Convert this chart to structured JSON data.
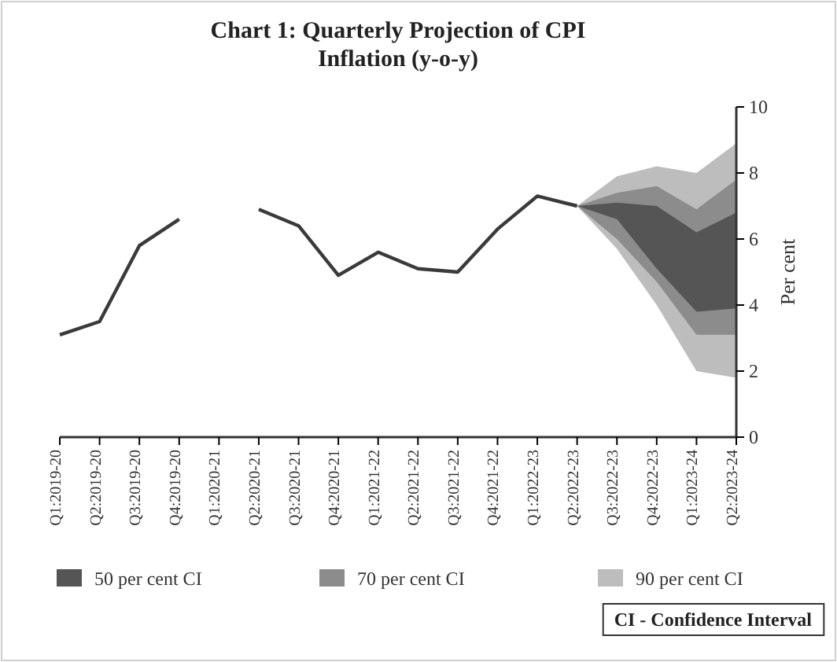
{
  "chart_data": {
    "type": "line",
    "title": "Chart 1: Quarterly Projection of CPI Inflation (y-o-y)",
    "ylabel": "Per cent",
    "categories": [
      "Q1:2019-20",
      "Q2:2019-20",
      "Q3:2019-20",
      "Q4:2019-20",
      "Q1:2020-21",
      "Q2:2020-21",
      "Q3:2020-21",
      "Q4:2020-21",
      "Q1:2021-22",
      "Q2:2021-22",
      "Q3:2021-22",
      "Q4:2021-22",
      "Q1:2022-23",
      "Q2:2022-23",
      "Q3:2022-23",
      "Q4:2022-23",
      "Q1:2023-24",
      "Q2:2023-24"
    ],
    "series": [
      {
        "name": "90 per cent CI",
        "color": "#bdbdbd",
        "values": [
          null,
          null,
          null,
          null,
          null,
          null,
          null,
          null,
          null,
          null,
          null,
          null,
          null,
          null,
          null,
          null,
          null,
          null
        ],
        "lower": [
          null,
          null,
          null,
          null,
          null,
          null,
          null,
          null,
          null,
          null,
          null,
          null,
          null,
          7.0,
          5.7,
          4.0,
          2.0,
          1.8
        ],
        "upper": [
          null,
          null,
          null,
          null,
          null,
          null,
          null,
          null,
          null,
          null,
          null,
          null,
          null,
          7.0,
          7.9,
          8.2,
          8.0,
          8.9
        ]
      },
      {
        "name": "70 per cent CI",
        "color": "#8c8c8c",
        "values": [
          null,
          null,
          null,
          null,
          null,
          null,
          null,
          null,
          null,
          null,
          null,
          null,
          null,
          null,
          null,
          null,
          null,
          null
        ],
        "lower": [
          null,
          null,
          null,
          null,
          null,
          null,
          null,
          null,
          null,
          null,
          null,
          null,
          null,
          7.0,
          6.0,
          4.7,
          3.1,
          3.1
        ],
        "upper": [
          null,
          null,
          null,
          null,
          null,
          null,
          null,
          null,
          null,
          null,
          null,
          null,
          null,
          7.0,
          7.4,
          7.6,
          6.9,
          7.8
        ]
      },
      {
        "name": "50 per cent CI",
        "color": "#555555",
        "values": [
          null,
          null,
          null,
          null,
          null,
          null,
          null,
          null,
          null,
          null,
          null,
          null,
          null,
          null,
          null,
          null,
          null,
          null
        ],
        "lower": [
          null,
          null,
          null,
          null,
          null,
          null,
          null,
          null,
          null,
          null,
          null,
          null,
          null,
          7.0,
          6.6,
          5.1,
          3.8,
          3.9
        ],
        "upper": [
          null,
          null,
          null,
          null,
          null,
          null,
          null,
          null,
          null,
          null,
          null,
          null,
          null,
          7.0,
          7.1,
          7.0,
          6.2,
          6.8
        ]
      },
      {
        "type": "line",
        "color": "#3a3a3a",
        "values": [
          3.1,
          3.5,
          5.8,
          6.6,
          null,
          6.9,
          6.4,
          4.9,
          5.6,
          5.1,
          5.0,
          6.3,
          7.3,
          7.0,
          null,
          null,
          null,
          null
        ]
      }
    ],
    "ylim": [
      0,
      10
    ],
    "yticks": [
      0,
      2,
      4,
      6,
      8,
      10
    ],
    "grid": false,
    "legend": "bottom",
    "marker": "none",
    "line_style": "solid",
    "annotations": [
      "CI - Confidence Interval"
    ]
  }
}
